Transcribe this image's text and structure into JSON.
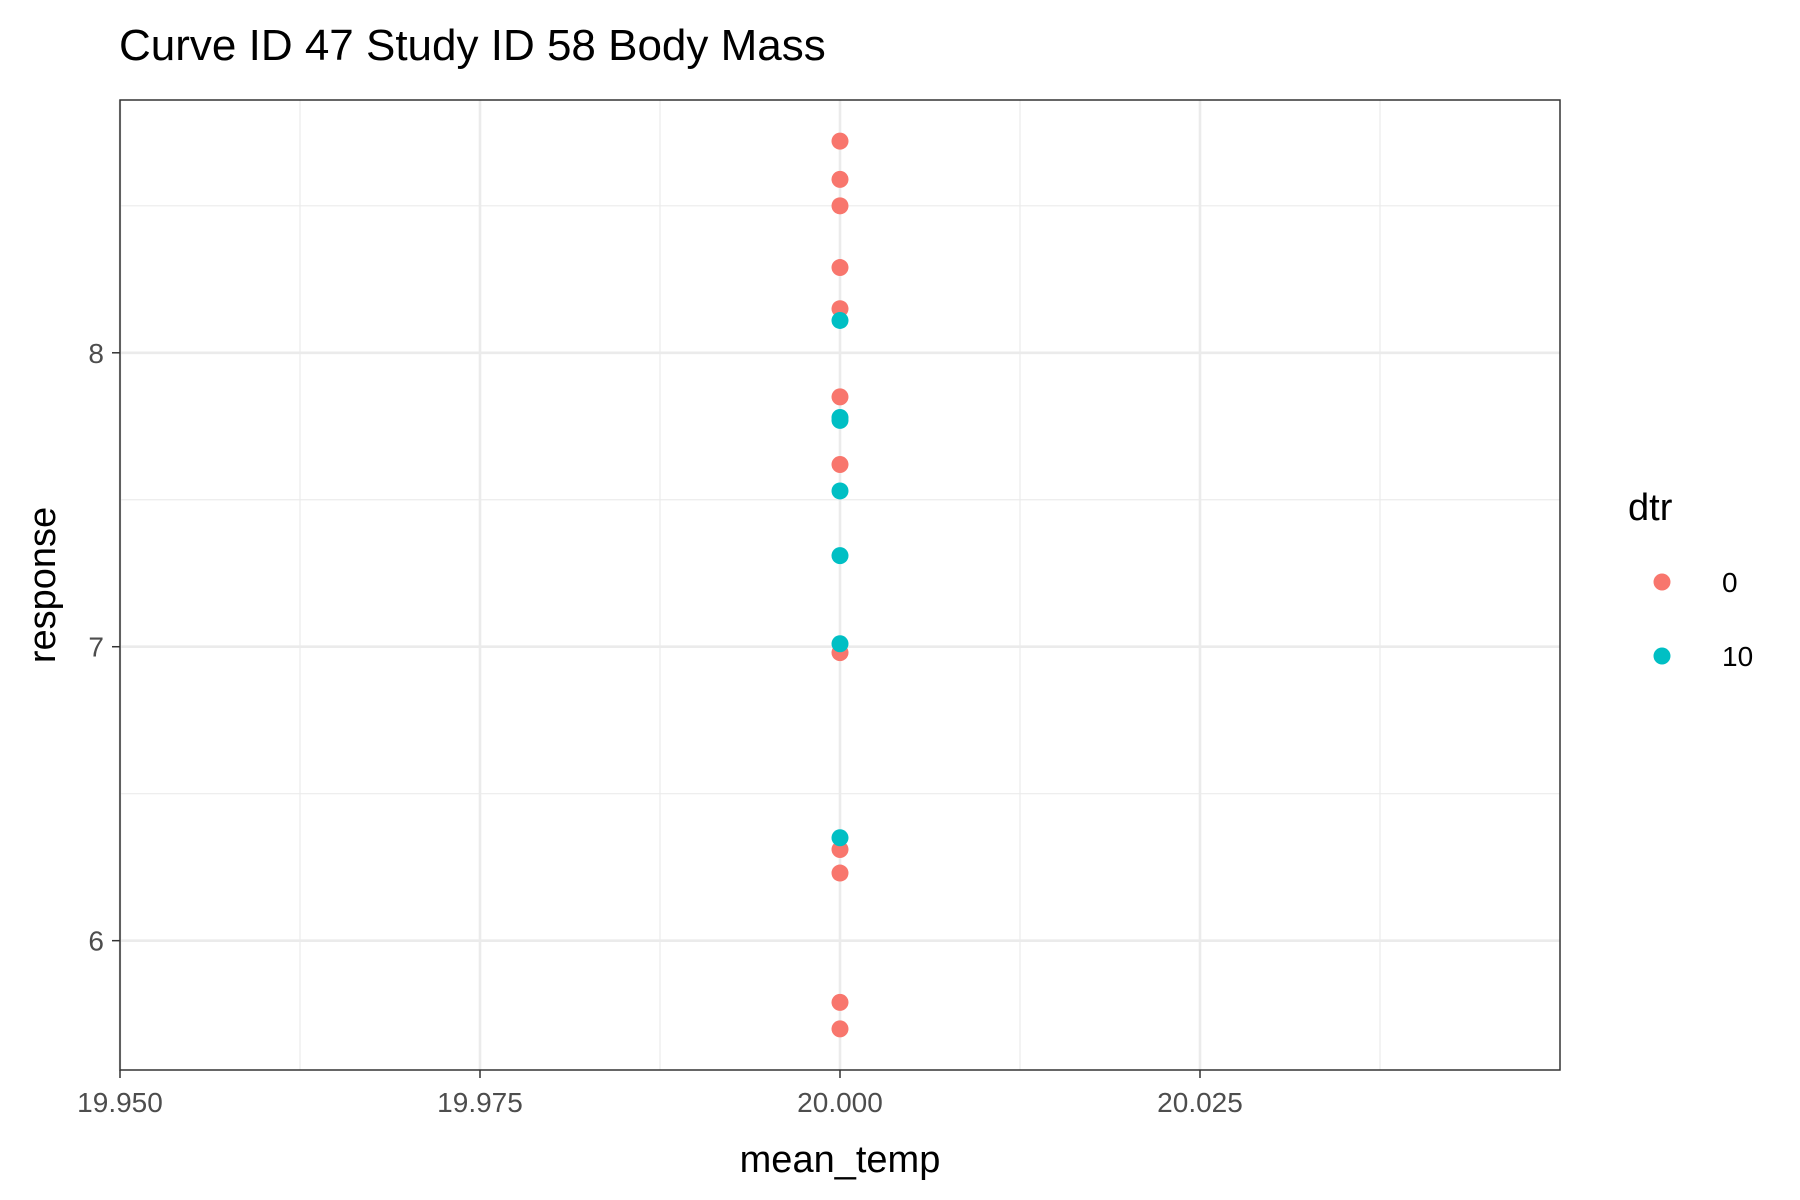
{
  "chart_data": {
    "type": "scatter",
    "title": "Curve ID 47 Study ID 58 Body Mass",
    "xlabel": "mean_temp",
    "ylabel": "response",
    "xlim": [
      19.95,
      20.05
    ],
    "ylim": [
      5.56,
      8.86
    ],
    "x_ticks": [
      19.95,
      19.975,
      20.0,
      20.025
    ],
    "x_tick_labels": [
      "19.950",
      "19.975",
      "20.000",
      "20.025"
    ],
    "y_ticks": [
      6,
      7,
      8
    ],
    "y_tick_labels": [
      "6",
      "7",
      "8"
    ],
    "x_minor_grid": [
      19.9625,
      19.9875,
      20.0125,
      20.0375
    ],
    "y_minor_grid": [
      6.5,
      7.5,
      8.5
    ],
    "grid": true,
    "legend": {
      "title": "dtr",
      "position": "right"
    },
    "series": [
      {
        "name": "0",
        "color": "#F8766D",
        "points": [
          {
            "x": 20.0,
            "y": 8.72
          },
          {
            "x": 20.0,
            "y": 8.59
          },
          {
            "x": 20.0,
            "y": 8.5
          },
          {
            "x": 20.0,
            "y": 8.29
          },
          {
            "x": 20.0,
            "y": 8.15
          },
          {
            "x": 20.0,
            "y": 7.85
          },
          {
            "x": 20.0,
            "y": 7.62
          },
          {
            "x": 20.0,
            "y": 6.98
          },
          {
            "x": 20.0,
            "y": 6.31
          },
          {
            "x": 20.0,
            "y": 6.23
          },
          {
            "x": 20.0,
            "y": 5.79
          },
          {
            "x": 20.0,
            "y": 5.7
          }
        ]
      },
      {
        "name": "10",
        "color": "#00BFC4",
        "points": [
          {
            "x": 20.0,
            "y": 8.11
          },
          {
            "x": 20.0,
            "y": 7.78
          },
          {
            "x": 20.0,
            "y": 7.77
          },
          {
            "x": 20.0,
            "y": 7.53
          },
          {
            "x": 20.0,
            "y": 7.31
          },
          {
            "x": 20.0,
            "y": 7.01
          },
          {
            "x": 20.0,
            "y": 6.35
          }
        ]
      }
    ]
  }
}
